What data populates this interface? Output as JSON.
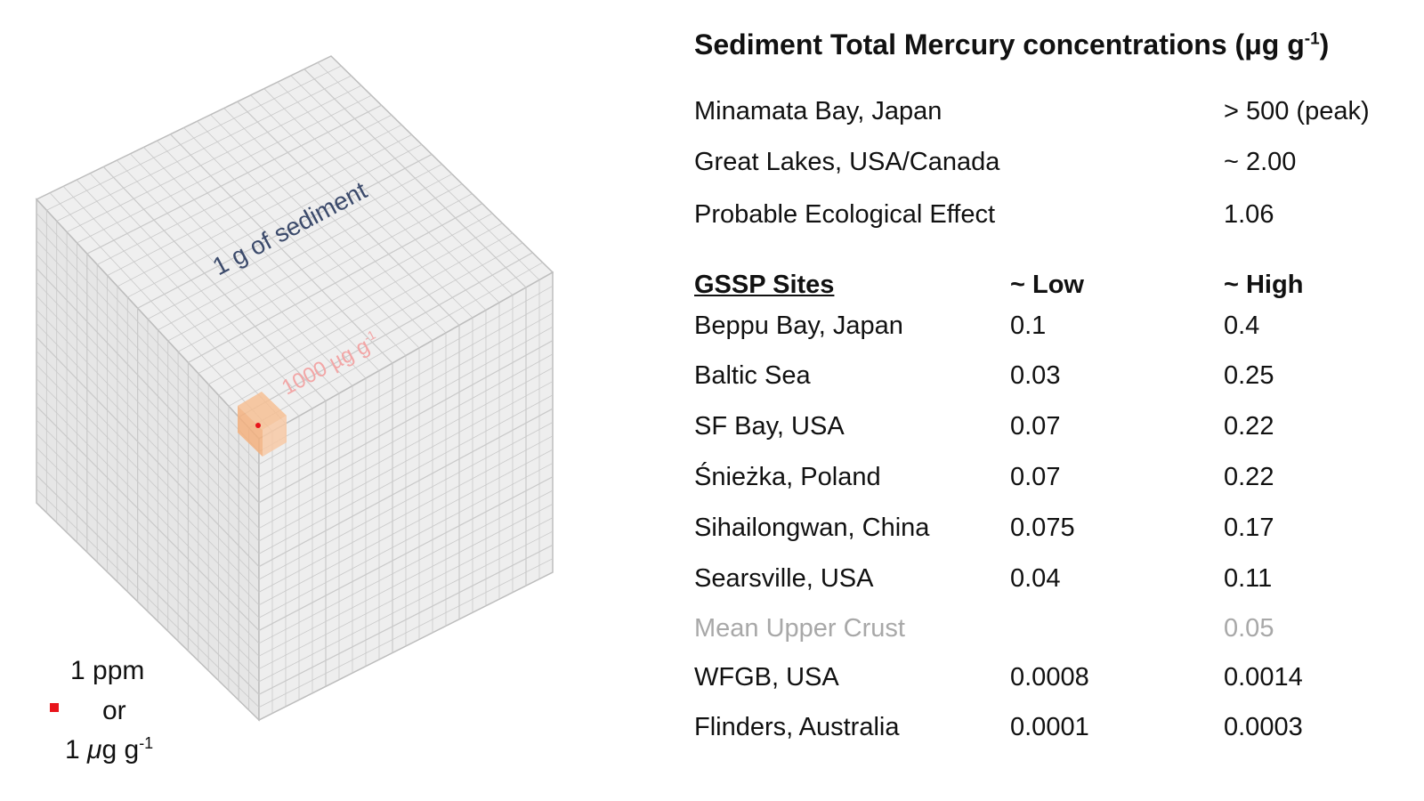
{
  "cube": {
    "face_label": "1 g of sediment",
    "highlight_label": "1000 µg g",
    "highlight_label_sup": "-1",
    "colors": {
      "cube_face": "#eaeaea",
      "grid_line": "#c9c9c9",
      "highlight": "#f6bf94",
      "dot": "#e8141b",
      "label": "#3b4a6b",
      "highlight_text": "#f2a6a6"
    }
  },
  "legend": {
    "line1": "1 ppm",
    "line2": "or",
    "line3_num": "1 ",
    "line3_mu": "μ",
    "line3_unit": "g g",
    "line3_sup": "-1"
  },
  "table": {
    "title": "Sediment Total Mercury concentrations (μg g",
    "title_sup": "-1",
    "title_close": ")",
    "reference_rows": [
      {
        "name": "Minamata Bay, Japan",
        "value": "> 500 (peak)"
      },
      {
        "name": "Great Lakes, USA/Canada",
        "value": "~ 2.00"
      },
      {
        "name": "Probable Ecological Effect",
        "value": "1.06"
      }
    ],
    "gssp_header": {
      "name": "GSSP Sites",
      "low": "~ Low",
      "high": "~ High"
    },
    "gssp_rows": [
      {
        "name": "Beppu Bay, Japan",
        "low": "0.1",
        "high": "0.4"
      },
      {
        "name": "Baltic Sea",
        "low": "0.03",
        "high": "0.25"
      },
      {
        "name": "SF Bay, USA",
        "low": "0.07",
        "high": "0.22"
      },
      {
        "name": "Śnieżka, Poland",
        "low": "0.07",
        "high": "0.22"
      },
      {
        "name": "Sihailongwan, China",
        "low": "0.075",
        "high": "0.17"
      },
      {
        "name": "Searsville, USA",
        "low": "0.04",
        "high": "0.11"
      },
      {
        "name": "Mean Upper Crust",
        "low": "",
        "high": "0.05",
        "muted": true
      },
      {
        "name": "WFGB, USA",
        "low": "0.0008",
        "high": "0.0014"
      },
      {
        "name": "Flinders, Australia",
        "low": "0.0001",
        "high": "0.0003"
      }
    ],
    "muted_color": "#a8a8a8"
  }
}
